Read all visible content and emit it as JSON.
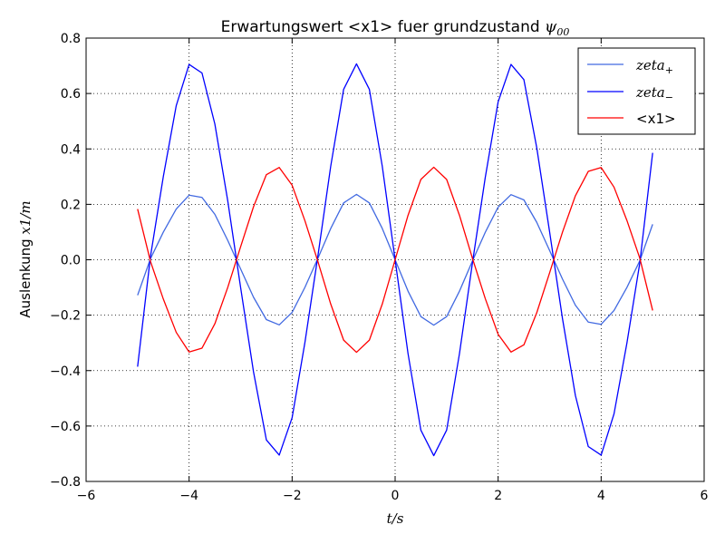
{
  "chart_data": {
    "type": "line",
    "title": {
      "main": "Erwartungswert <x1> fuer grundzustand ",
      "math": "ψ",
      "sub": "00"
    },
    "xlabel": {
      "math": "t/s"
    },
    "ylabel": {
      "main": "Auslenkung ",
      "math": "x1/m"
    },
    "xlim": [
      -6,
      6
    ],
    "ylim": [
      -0.8,
      0.8
    ],
    "xticks": [
      -6,
      -4,
      -2,
      0,
      2,
      4,
      6
    ],
    "xtick_labels": [
      "−6",
      "−4",
      "−2",
      "0",
      "2",
      "4",
      "6"
    ],
    "yticks": [
      -0.8,
      -0.6,
      -0.4,
      -0.2,
      0.0,
      0.2,
      0.4,
      0.6,
      0.8
    ],
    "ytick_labels": [
      "−0.8",
      "−0.6",
      "−0.4",
      "−0.2",
      "0.0",
      "0.2",
      "0.4",
      "0.6",
      "0.8"
    ],
    "grid": true,
    "legend": "top-right",
    "series": [
      {
        "name": "zeta",
        "name_sub": "+",
        "color": "#4169e1",
        "x": [
          -5.0,
          -4.75,
          -4.5,
          -4.25,
          -4.0,
          -3.75,
          -3.5,
          -3.25,
          -3.0,
          -2.75,
          -2.5,
          -2.25,
          -2.0,
          -1.75,
          -1.5,
          -1.25,
          -1.0,
          -0.75,
          -0.5,
          -0.25,
          0.0,
          0.25,
          0.5,
          0.75,
          1.0,
          1.25,
          1.5,
          1.75,
          2.0,
          2.25,
          2.5,
          2.75,
          3.0,
          3.25,
          3.5,
          3.75,
          4.0,
          4.25,
          4.5,
          4.75,
          5.0
        ],
        "values": [
          -0.128,
          0.004,
          0.1,
          0.183,
          0.233,
          0.225,
          0.164,
          0.07,
          -0.033,
          -0.135,
          -0.216,
          -0.235,
          -0.19,
          -0.099,
          0.005,
          0.113,
          0.205,
          0.236,
          0.205,
          0.113,
          0.0,
          -0.113,
          -0.205,
          -0.236,
          -0.205,
          -0.113,
          -0.005,
          0.099,
          0.19,
          0.235,
          0.216,
          0.135,
          0.033,
          -0.07,
          -0.164,
          -0.225,
          -0.233,
          -0.183,
          -0.1,
          -0.004,
          0.128
        ]
      },
      {
        "name": "zeta",
        "name_sub": "−",
        "color": "#0000ff",
        "x": [
          -5.0,
          -4.75,
          -4.5,
          -4.25,
          -4.0,
          -3.75,
          -3.5,
          -3.25,
          -3.0,
          -2.75,
          -2.5,
          -2.25,
          -2.0,
          -1.75,
          -1.5,
          -1.25,
          -1.0,
          -0.75,
          -0.5,
          -0.25,
          0.0,
          0.25,
          0.5,
          0.75,
          1.0,
          1.25,
          1.5,
          1.75,
          2.0,
          2.25,
          2.5,
          2.75,
          3.0,
          3.25,
          3.5,
          3.75,
          4.0,
          4.25,
          4.5,
          4.75,
          5.0
        ],
        "values": [
          -0.386,
          0.012,
          0.301,
          0.556,
          0.705,
          0.674,
          0.49,
          0.213,
          -0.1,
          -0.404,
          -0.65,
          -0.705,
          -0.57,
          -0.297,
          0.013,
          0.338,
          0.615,
          0.707,
          0.615,
          0.338,
          0.0,
          -0.338,
          -0.615,
          -0.707,
          -0.615,
          -0.338,
          -0.013,
          0.297,
          0.57,
          0.705,
          0.65,
          0.404,
          0.1,
          -0.213,
          -0.49,
          -0.674,
          -0.705,
          -0.556,
          -0.301,
          -0.012,
          0.386
        ]
      },
      {
        "name": "<x1>",
        "color": "#ff0000",
        "x": [
          -5.0,
          -4.75,
          -4.5,
          -4.25,
          -4.0,
          -3.75,
          -3.5,
          -3.25,
          -3.0,
          -2.75,
          -2.5,
          -2.25,
          -2.0,
          -1.75,
          -1.5,
          -1.25,
          -1.0,
          -0.75,
          -0.5,
          -0.25,
          0.0,
          0.25,
          0.5,
          0.75,
          1.0,
          1.25,
          1.5,
          1.75,
          2.0,
          2.25,
          2.5,
          2.75,
          3.0,
          3.25,
          3.5,
          3.75,
          4.0,
          4.25,
          4.5,
          4.75,
          5.0
        ],
        "values": [
          0.183,
          -0.006,
          -0.142,
          -0.262,
          -0.333,
          -0.319,
          -0.231,
          -0.1,
          0.047,
          0.191,
          0.307,
          0.333,
          0.269,
          0.14,
          -0.006,
          -0.16,
          -0.29,
          -0.334,
          -0.29,
          -0.16,
          0.0,
          0.16,
          0.29,
          0.334,
          0.29,
          0.16,
          0.006,
          -0.14,
          -0.269,
          -0.333,
          -0.307,
          -0.191,
          -0.047,
          0.1,
          0.231,
          0.319,
          0.333,
          0.262,
          0.142,
          0.006,
          -0.183
        ]
      }
    ]
  }
}
